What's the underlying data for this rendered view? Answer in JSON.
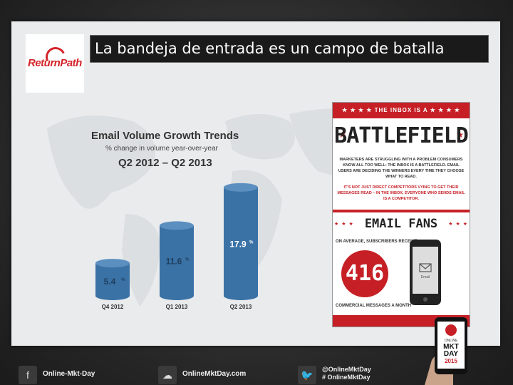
{
  "slide": {
    "title": "La bandeja de entrada es un campo de batalla",
    "logo_text": "ReturnPath"
  },
  "chart_data": {
    "type": "bar",
    "title": "Email Volume Growth Trends",
    "subtitle": "% change in volume year-over-year",
    "range_label": "Q2 2012 – Q2 2013",
    "categories": [
      "Q4 2012",
      "Q1 2013",
      "Q2 2013"
    ],
    "values": [
      5.4,
      11.6,
      17.9
    ],
    "value_labels": [
      "5.4",
      "11.6",
      "17.9"
    ],
    "value_suffix": "%",
    "ylim": [
      0,
      20
    ],
    "grid": false,
    "colors": {
      "bar": "#3a72a6",
      "bar_top": "#5b8fc0",
      "label_dark": "#1f3f5e",
      "label_light": "#ffffff"
    }
  },
  "infographic": {
    "banner": "THE INBOX IS A",
    "headline": "BATTLEFIELD",
    "paragraph1": "MARKETERS ARE STRUGGLING WITH A PROBLEM CONSUMERS KNOW ALL TOO WELL: THE INBOX IS A BATTLEFIELD. EMAIL USERS ARE DECIDING THE WINNERS EVERY TIME THEY CHOOSE WHAT TO READ.",
    "paragraph2": "IT'S NOT JUST DIRECT COMPETITORS VYING TO GET THEIR MESSAGES READ – IN THE INBOX, EVERYONE WHO SENDS EMAIL IS A COMPETITOR.",
    "fans_title": "EMAIL FANS",
    "average_text": "ON AVERAGE, SUBSCRIBERS RECEIVE",
    "count": "416",
    "messages_text": "COMMERCIAL MESSAGES A MONTH",
    "phone_label": "Email",
    "accent": "#c62026"
  },
  "badge": {
    "line1": "ONLINE",
    "line2": "MKT",
    "line3": "DAY",
    "line4": "2015"
  },
  "footer": {
    "facebook": "Online-Mkt-Day",
    "website": "OnlineMktDay.com",
    "twitter_handle": "@OnlineMktDay",
    "twitter_hashtag": "# OnlineMktDay",
    "icons": [
      "facebook-icon",
      "cloud-icon",
      "twitter-icon"
    ]
  }
}
